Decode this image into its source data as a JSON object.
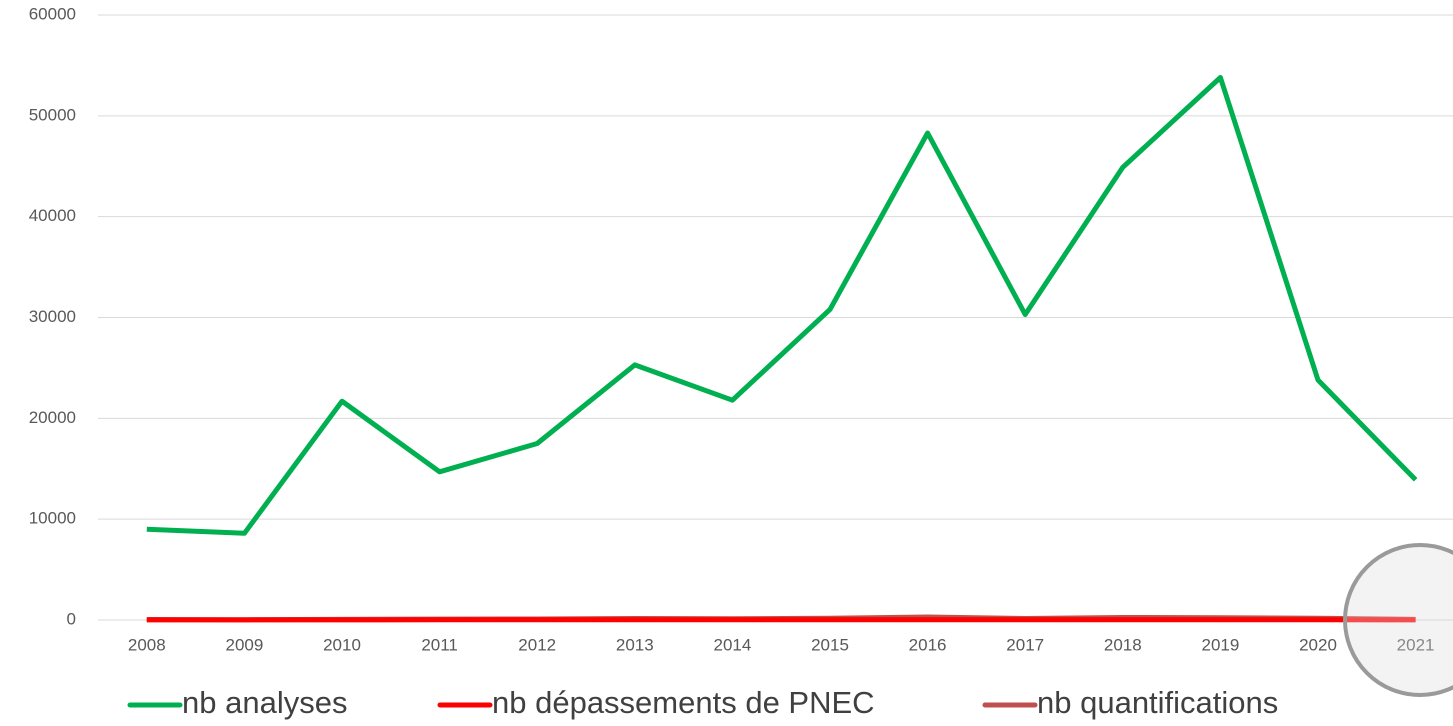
{
  "chart_data": {
    "type": "line",
    "categories": [
      "2008",
      "2009",
      "2010",
      "2011",
      "2012",
      "2013",
      "2014",
      "2015",
      "2016",
      "2017",
      "2018",
      "2019",
      "2020",
      "2021"
    ],
    "series": [
      {
        "name": "nb analyses",
        "color": "#00b050",
        "values": [
          9000,
          8600,
          21700,
          14700,
          17500,
          25300,
          21800,
          30800,
          48300,
          30300,
          44900,
          53800,
          23800,
          13900
        ]
      },
      {
        "name": "nb dépassements de PNEC",
        "color": "#ff0000",
        "values": [
          10,
          5,
          10,
          15,
          15,
          20,
          15,
          20,
          30,
          20,
          25,
          25,
          20,
          5
        ]
      },
      {
        "name": "nb quantifications",
        "color": "#c0504d",
        "values": [
          50,
          30,
          60,
          90,
          100,
          150,
          120,
          180,
          300,
          150,
          250,
          230,
          180,
          60
        ]
      }
    ],
    "ylim": [
      0,
      60000
    ],
    "yticks": [
      0,
      10000,
      20000,
      30000,
      40000,
      50000,
      60000
    ],
    "grid": true,
    "legend": "bottom"
  }
}
